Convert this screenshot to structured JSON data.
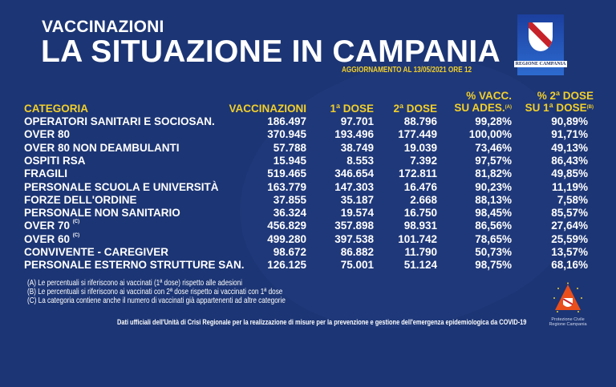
{
  "header": {
    "kicker": "VACCINAZIONI",
    "title": "LA SITUAZIONE IN CAMPANIA",
    "update": "AGGIORNAMENTO AL 13/05/2021 ORE 12",
    "logo_text": "REGIONE CAMPANIA"
  },
  "columns": {
    "categoria": "CATEGORIA",
    "vaccinazioni": "VACCINAZIONI",
    "dose1": "1ª DOSE",
    "dose2": "2ª DOSE",
    "pct_vacc_1": "% VACC.",
    "pct_vacc_2": "SU ADES.",
    "pct_vacc_note": "(A)",
    "pct_2dose_1": "% 2ª DOSE",
    "pct_2dose_2": "SU 1ª DOSE",
    "pct_2dose_note": "(B)"
  },
  "rows": [
    {
      "cat": "OPERATORI SANITARI E SOCIOSAN.",
      "note": "",
      "vacc": "186.497",
      "d1": "97.701",
      "d2": "88.796",
      "p1": "99,28%",
      "p2": "90,89%"
    },
    {
      "cat": "OVER 80",
      "note": "",
      "vacc": "370.945",
      "d1": "193.496",
      "d2": "177.449",
      "p1": "100,00%",
      "p2": "91,71%"
    },
    {
      "cat": "OVER 80 NON DEAMBULANTI",
      "note": "",
      "vacc": "57.788",
      "d1": "38.749",
      "d2": "19.039",
      "p1": "73,46%",
      "p2": "49,13%"
    },
    {
      "cat": "OSPITI RSA",
      "note": "",
      "vacc": "15.945",
      "d1": "8.553",
      "d2": "7.392",
      "p1": "97,57%",
      "p2": "86,43%"
    },
    {
      "cat": "FRAGILI",
      "note": "",
      "vacc": "519.465",
      "d1": "346.654",
      "d2": "172.811",
      "p1": "81,82%",
      "p2": "49,85%"
    },
    {
      "cat": "PERSONALE SCUOLA E UNIVERSITÀ",
      "note": "",
      "vacc": "163.779",
      "d1": "147.303",
      "d2": "16.476",
      "p1": "90,23%",
      "p2": "11,19%"
    },
    {
      "cat": "FORZE DELL'ORDINE",
      "note": "",
      "vacc": "37.855",
      "d1": "35.187",
      "d2": "2.668",
      "p1": "88,13%",
      "p2": "7,58%"
    },
    {
      "cat": "PERSONALE NON SANITARIO",
      "note": "",
      "vacc": "36.324",
      "d1": "19.574",
      "d2": "16.750",
      "p1": "98,45%",
      "p2": "85,57%"
    },
    {
      "cat": "OVER 70",
      "note": "(C)",
      "vacc": "456.829",
      "d1": "357.898",
      "d2": "98.931",
      "p1": "86,56%",
      "p2": "27,64%"
    },
    {
      "cat": "OVER 60",
      "note": "(C)",
      "vacc": "499.280",
      "d1": "397.538",
      "d2": "101.742",
      "p1": "78,65%",
      "p2": "25,59%"
    },
    {
      "cat": "CONVIVENTE - CAREGIVER",
      "note": "",
      "vacc": "98.672",
      "d1": "86.882",
      "d2": "11.790",
      "p1": "50,73%",
      "p2": "13,57%"
    },
    {
      "cat": "PERSONALE ESTERNO STRUTTURE SAN.",
      "note": "",
      "vacc": "126.125",
      "d1": "75.001",
      "d2": "51.124",
      "p1": "98,75%",
      "p2": "68,16%"
    }
  ],
  "notes": [
    "(A) Le percentuali si riferiscono ai vaccinati (1ª dose) rispetto alle adesioni",
    "(B) Le percentuali si riferiscono ai vaccinati con 2ª dose rispetto ai vaccinati con 1ª dose",
    "(C) La categoria contiene anche il numero di vaccinati già appartenenti ad altre categorie"
  ],
  "footer": "Dati ufficiali dell'Unità di Crisi Regionale per la realizzazione di misure per la prevenzione e gestione dell'emergenza epidemiologica da COVID-19",
  "protezione_civile": [
    "Protezione Civile",
    "Regione Campania"
  ],
  "colors": {
    "background": "#1c3574",
    "accent": "#f2cf2a",
    "text": "#ffffff"
  }
}
